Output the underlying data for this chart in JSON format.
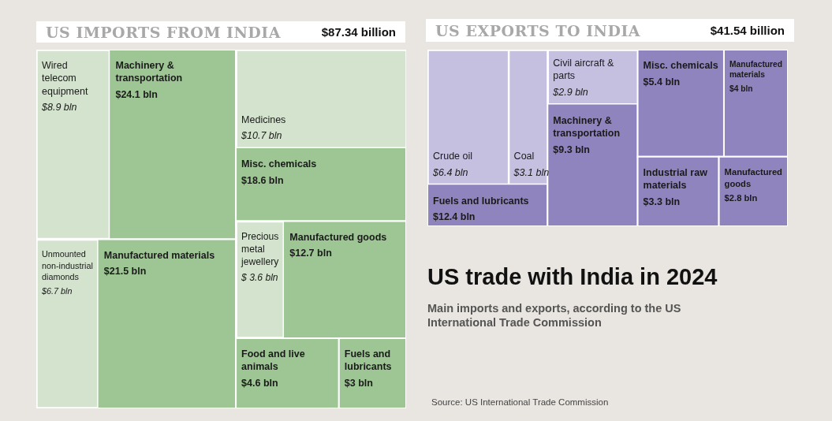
{
  "chart_data": [
    {
      "type": "other",
      "title": "US IMPORTS FROM INDIA",
      "subtitle": "$87.34 billion",
      "color": "#9dc694",
      "categories": [
        "Machinery & transportation",
        "Manufactured materials",
        "Misc. chemicals",
        "Manufactured goods",
        "Food and live animals",
        "Fuels and lubricants"
      ],
      "values": [
        24.1,
        21.5,
        18.6,
        12.7,
        4.6,
        3
      ],
      "value_labels": [
        "$24.1 bln",
        "$21.5 bln",
        "$18.6 bln",
        "$12.7 bln",
        "$4.6 bln",
        "$3 bln"
      ],
      "series": [
        {
          "name": "Wired telecom equipment",
          "color": "#d3e3cd",
          "values": [
            8.9,
            null,
            null,
            null,
            null,
            null
          ],
          "value_labels": [
            "$8.9 bln",
            null,
            null,
            null,
            null,
            null
          ]
        },
        {
          "name": "Unmounted non-industrial diamonds",
          "color": "#d3e3cd",
          "values": [
            null,
            6.7,
            null,
            null,
            null,
            null
          ],
          "value_labels": [
            null,
            "$6.7 bln",
            null,
            null,
            null,
            null
          ]
        },
        {
          "name": "Medicines",
          "color": "#d3e3cd",
          "values": [
            null,
            null,
            10.7,
            null,
            null,
            null
          ],
          "value_labels": [
            null,
            null,
            "$10.7 bln",
            null,
            null,
            null
          ]
        },
        {
          "name": "Precious metal jewellery",
          "color": "#d3e3cd",
          "values": [
            null,
            null,
            null,
            3.6,
            null,
            null
          ],
          "value_labels": [
            null,
            null,
            null,
            "$ 3.6 bln",
            null,
            null
          ]
        }
      ]
    },
    {
      "type": "other",
      "title": "US EXPORTS TO INDIA",
      "subtitle": "$41.54 billion",
      "color": "#8f84bd",
      "categories": [
        "Fuels and lubricants",
        "Machinery & transportation",
        "Misc. chemicals",
        "Manufactured materials",
        "Industrial raw materials",
        "Manufactured goods"
      ],
      "values": [
        12.4,
        9.3,
        5.4,
        4,
        3.3,
        2.8
      ],
      "value_labels": [
        "$12.4 bln",
        "$9.3 bln",
        "$5.4 bln",
        "$4 bln",
        "$3.3 bln",
        "$2.8 bln"
      ],
      "series": [
        {
          "name": "Crude oil",
          "color": "#c5bfe0",
          "values": [
            6.4,
            null,
            null,
            null,
            null,
            null
          ],
          "value_labels": [
            "$6.4 bln",
            null,
            null,
            null,
            null,
            null
          ]
        },
        {
          "name": "Coal",
          "color": "#c5bfe0",
          "values": [
            3.1,
            null,
            null,
            null,
            null,
            null
          ],
          "value_labels": [
            "$3.1 bln",
            null,
            null,
            null,
            null,
            null
          ]
        },
        {
          "name": "Civil aircraft & parts",
          "color": "#c5bfe0",
          "values": [
            null,
            2.9,
            null,
            null,
            null,
            null
          ],
          "value_labels": [
            null,
            "$2.9 bln",
            null,
            null,
            null,
            null
          ]
        }
      ]
    },
    {
      "type": "other",
      "title": "US trade with India in 2024",
      "subtitle": "Main imports and exports, according to the US International Trade Commission",
      "annotations": [
        "Source: US International Trade Commission"
      ]
    }
  ]
}
